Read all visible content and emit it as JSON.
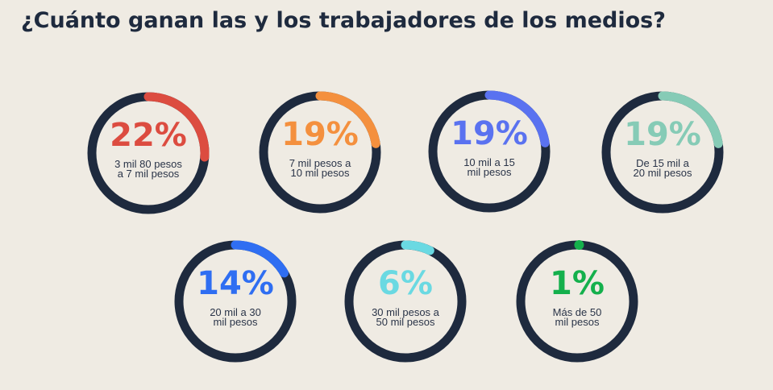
{
  "title": "¿Cuánto ganan las y los trabajadores de los medios?",
  "colors": {
    "background": "#efebe3",
    "ring": "#1e2a3e",
    "title": "#1e2a3e"
  },
  "chart_data": {
    "type": "donut",
    "title": "¿Cuánto ganan las y los trabajadores de los medios?",
    "unit": "%",
    "series": [
      {
        "value": 22,
        "percent_label": "22%",
        "label_lines": [
          "3 mil 80 pesos",
          "a 7 mil pesos"
        ],
        "color": "#dc4c40"
      },
      {
        "value": 19,
        "percent_label": "19%",
        "label_lines": [
          "7 mil pesos a",
          "10 mil pesos"
        ],
        "color": "#f4903e"
      },
      {
        "value": 19,
        "percent_label": "19%",
        "label_lines": [
          "10 mil a 15",
          "mil pesos"
        ],
        "color": "#5a72f0"
      },
      {
        "value": 19,
        "percent_label": "19%",
        "label_lines": [
          "De 15 mil a",
          "20 mil pesos"
        ],
        "color": "#86cbb6"
      },
      {
        "value": 14,
        "percent_label": "14%",
        "label_lines": [
          "20 mil a 30",
          "mil pesos"
        ],
        "color": "#2f6ef2"
      },
      {
        "value": 6,
        "percent_label": "6%",
        "label_lines": [
          "30 mil pesos a",
          "50 mil pesos"
        ],
        "color": "#6ad9e2"
      },
      {
        "value": 1,
        "percent_label": "1%",
        "label_lines": [
          "Más de 50",
          "mil pesos"
        ],
        "color": "#14b04c"
      }
    ]
  }
}
